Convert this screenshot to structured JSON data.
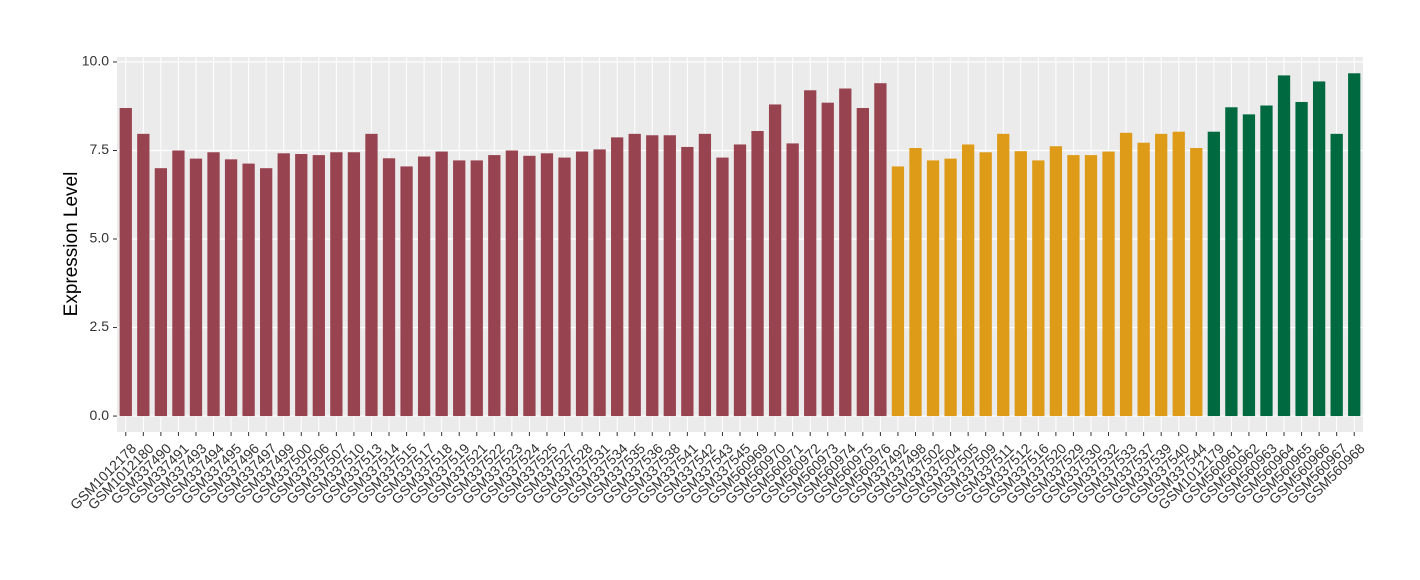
{
  "chart_data": {
    "type": "bar",
    "y_label": "Expression Level",
    "categories": [
      "GSM1012178",
      "GSM1012180",
      "GSM337490",
      "GSM337491",
      "GSM337493",
      "GSM337494",
      "GSM337495",
      "GSM337496",
      "GSM337497",
      "GSM337499",
      "GSM337500",
      "GSM337506",
      "GSM337507",
      "GSM337510",
      "GSM337513",
      "GSM337514",
      "GSM337515",
      "GSM337517",
      "GSM337518",
      "GSM337519",
      "GSM337521",
      "GSM337522",
      "GSM337523",
      "GSM337524",
      "GSM337525",
      "GSM337527",
      "GSM337528",
      "GSM337531",
      "GSM337534",
      "GSM337535",
      "GSM337536",
      "GSM337538",
      "GSM337541",
      "GSM337542",
      "GSM337543",
      "GSM337545",
      "GSM560969",
      "GSM560970",
      "GSM560971",
      "GSM560972",
      "GSM560973",
      "GSM560974",
      "GSM560975",
      "GSM560976",
      "GSM337492",
      "GSM337498",
      "GSM337502",
      "GSM337504",
      "GSM337505",
      "GSM337509",
      "GSM337511",
      "GSM337512",
      "GSM337516",
      "GSM337520",
      "GSM337529",
      "GSM337530",
      "GSM337532",
      "GSM337533",
      "GSM337537",
      "GSM337539",
      "GSM337540",
      "GSM337544",
      "GSM1012179",
      "GSM560961",
      "GSM560962",
      "GSM560963",
      "GSM560964",
      "GSM560965",
      "GSM560966",
      "GSM560967",
      "GSM560968"
    ],
    "values": [
      8.7,
      7.97,
      7.0,
      7.5,
      7.27,
      7.45,
      7.25,
      7.13,
      7.0,
      7.42,
      7.4,
      7.37,
      7.45,
      7.45,
      7.97,
      7.28,
      7.05,
      7.33,
      7.47,
      7.22,
      7.22,
      7.37,
      7.5,
      7.35,
      7.42,
      7.3,
      7.47,
      7.53,
      7.87,
      7.97,
      7.93,
      7.93,
      7.6,
      7.97,
      7.3,
      7.67,
      8.05,
      8.8,
      7.7,
      9.2,
      8.85,
      9.25,
      8.7,
      9.4,
      7.05,
      7.57,
      7.22,
      7.27,
      7.67,
      7.45,
      7.97,
      7.48,
      7.22,
      7.62,
      7.37,
      7.37,
      7.47,
      8.0,
      7.72,
      7.97,
      8.03,
      7.57,
      8.03,
      8.72,
      8.52,
      8.77,
      9.62,
      8.87,
      9.45,
      7.97,
      9.68
    ],
    "colors": [
      "#984350",
      "#984350",
      "#984350",
      "#984350",
      "#984350",
      "#984350",
      "#984350",
      "#984350",
      "#984350",
      "#984350",
      "#984350",
      "#984350",
      "#984350",
      "#984350",
      "#984350",
      "#984350",
      "#984350",
      "#984350",
      "#984350",
      "#984350",
      "#984350",
      "#984350",
      "#984350",
      "#984350",
      "#984350",
      "#984350",
      "#984350",
      "#984350",
      "#984350",
      "#984350",
      "#984350",
      "#984350",
      "#984350",
      "#984350",
      "#984350",
      "#984350",
      "#984350",
      "#984350",
      "#984350",
      "#984350",
      "#984350",
      "#984350",
      "#984350",
      "#984350",
      "#de9b17",
      "#de9b17",
      "#de9b17",
      "#de9b17",
      "#de9b17",
      "#de9b17",
      "#de9b17",
      "#de9b17",
      "#de9b17",
      "#de9b17",
      "#de9b17",
      "#de9b17",
      "#de9b17",
      "#de9b17",
      "#de9b17",
      "#de9b17",
      "#de9b17",
      "#de9b17",
      "#006940",
      "#006940",
      "#006940",
      "#006940",
      "#006940",
      "#006940",
      "#006940",
      "#006940",
      "#006940"
    ],
    "ylim": [
      -0.45,
      10.14
    ],
    "yticks": [
      {
        "value": 0,
        "label": "0.0"
      },
      {
        "value": 2.5,
        "label": "2.5"
      },
      {
        "value": 5,
        "label": "5.0"
      },
      {
        "value": 7.5,
        "label": "7.5"
      },
      {
        "value": 10,
        "label": "10.0"
      }
    ],
    "grid": true
  }
}
